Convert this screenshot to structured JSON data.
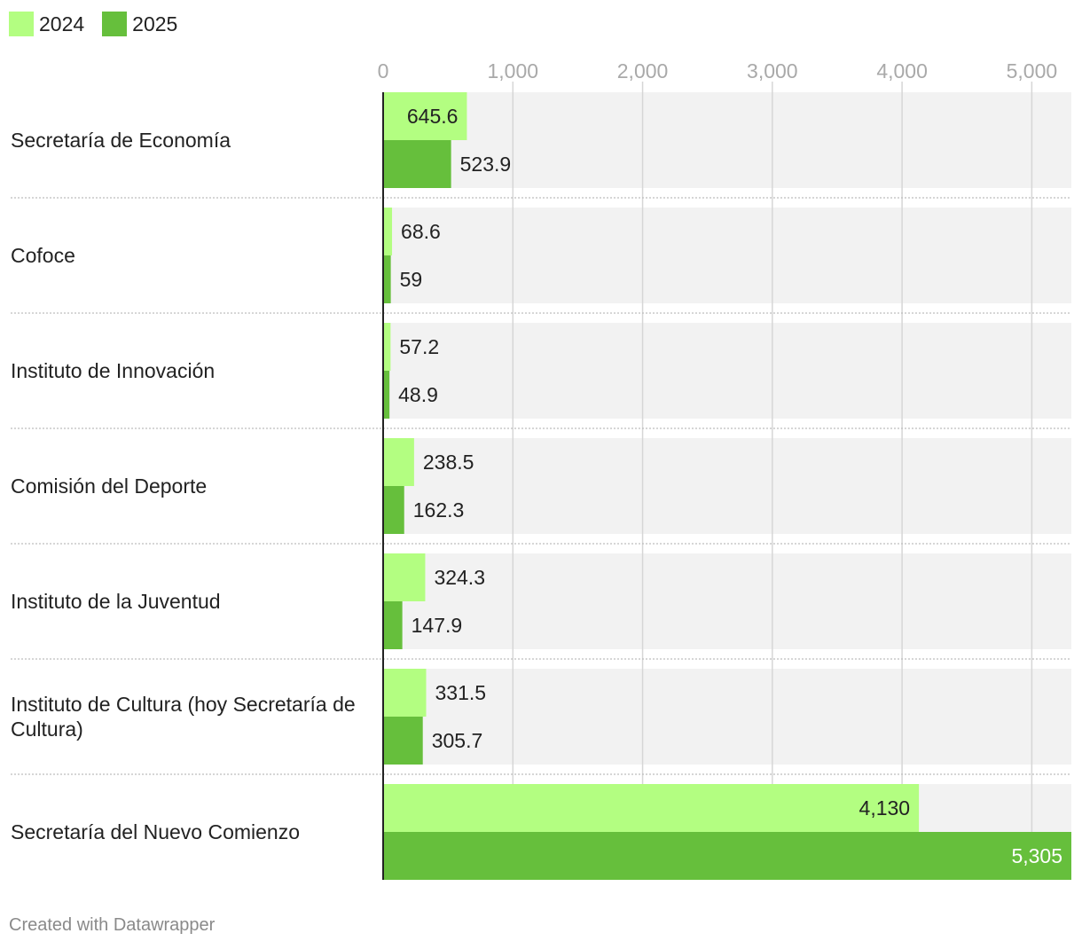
{
  "legend": [
    {
      "label": "2024",
      "color": "#b3fe81"
    },
    {
      "label": "2025",
      "color": "#66bf3c"
    }
  ],
  "footer": "Created with Datawrapper",
  "chart_data": {
    "type": "bar",
    "orientation": "horizontal",
    "categories": [
      "Secretaría de Economía",
      "Cofoce",
      "Instituto de Innovación",
      "Comisión del Deporte",
      "Instituto de la Juventud",
      "Instituto de Cultura (hoy Secretaría de Cultura)",
      "Secretaría del Nuevo Comienzo"
    ],
    "series": [
      {
        "name": "2024",
        "color": "#b3fe81",
        "values": [
          645.6,
          68.6,
          57.2,
          238.5,
          324.3,
          331.5,
          4130
        ],
        "value_labels": [
          "645.6",
          "68.6",
          "57.2",
          "238.5",
          "324.3",
          "331.5",
          "4,130"
        ]
      },
      {
        "name": "2025",
        "color": "#66bf3c",
        "values": [
          523.9,
          59,
          48.9,
          162.3,
          147.9,
          305.7,
          5305
        ],
        "value_labels": [
          "523.9",
          "59",
          "48.9",
          "162.3",
          "147.9",
          "305.7",
          "5,305"
        ]
      }
    ],
    "xlim": [
      0,
      5305
    ],
    "xticks": [
      0,
      1000,
      2000,
      3000,
      4000,
      5000
    ],
    "xtick_labels": [
      "0",
      "1,000",
      "2,000",
      "3,000",
      "4,000",
      "5,000"
    ],
    "grid": true,
    "xaxis_position": "top",
    "legend_position": "top-left",
    "title": "",
    "xlabel": "",
    "ylabel": ""
  }
}
